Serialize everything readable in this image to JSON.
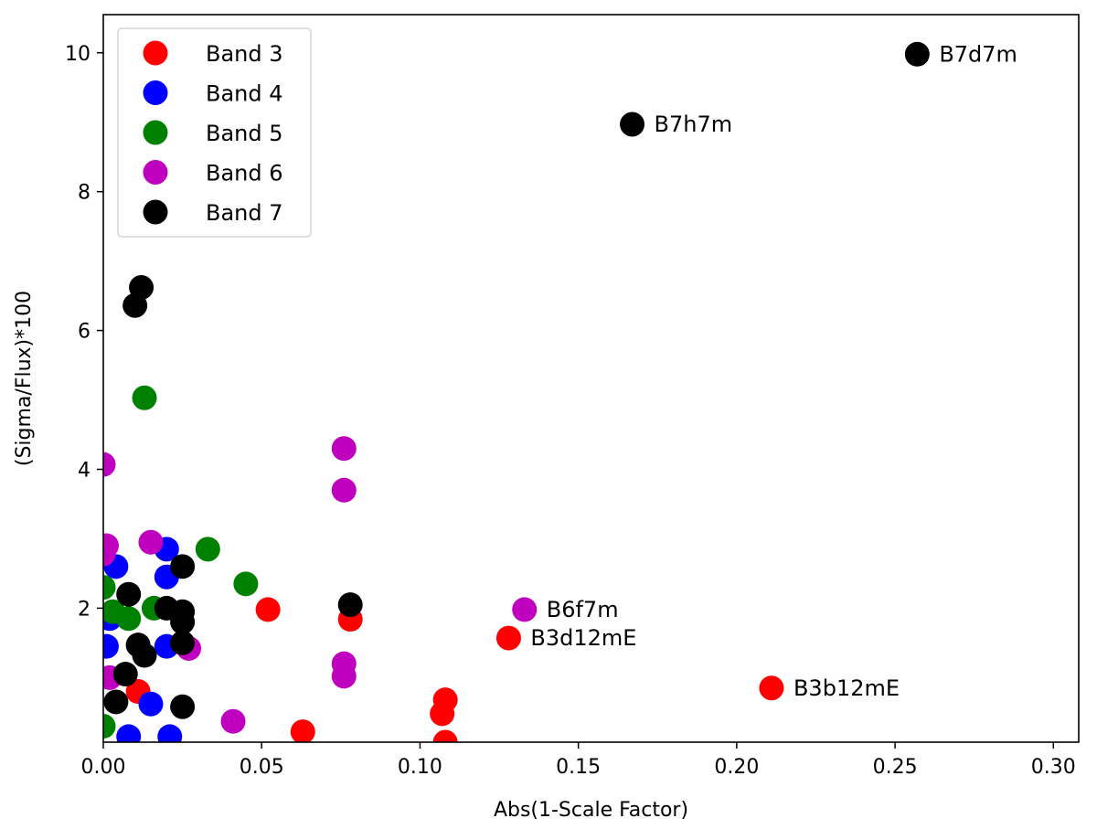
{
  "chart_data": {
    "type": "scatter",
    "title": "",
    "xlabel": "Abs(1-Scale Factor)",
    "ylabel": "(Sigma/Flux)*100",
    "xlim": [
      0.0,
      0.308
    ],
    "ylim": [
      0.07,
      10.55
    ],
    "xticks": [
      0.0,
      0.05,
      0.1,
      0.15,
      0.2,
      0.25,
      0.3
    ],
    "xtick_labels": [
      "0.00",
      "0.05",
      "0.10",
      "0.15",
      "0.20",
      "0.25",
      "0.30"
    ],
    "yticks": [
      2,
      4,
      6,
      8,
      10
    ],
    "ytick_labels": [
      "2",
      "4",
      "6",
      "8",
      "10"
    ],
    "grid": false,
    "legend_position": "top-left",
    "series": [
      {
        "name": "Band 3",
        "color": "#ff0000",
        "points": [
          [
            0.011,
            0.8
          ],
          [
            0.052,
            1.98
          ],
          [
            0.063,
            0.22
          ],
          [
            0.078,
            1.84
          ],
          [
            0.107,
            0.48
          ],
          [
            0.108,
            0.68
          ],
          [
            0.108,
            0.07
          ],
          [
            0.128,
            1.57
          ],
          [
            0.211,
            0.85
          ]
        ]
      },
      {
        "name": "Band 4",
        "color": "#0000ff",
        "points": [
          [
            0.004,
            2.6
          ],
          [
            0.002,
            1.85
          ],
          [
            0.001,
            1.45
          ],
          [
            0.008,
            0.15
          ],
          [
            0.015,
            0.62
          ],
          [
            0.02,
            2.85
          ],
          [
            0.02,
            2.45
          ],
          [
            0.02,
            1.45
          ],
          [
            0.021,
            0.15
          ]
        ]
      },
      {
        "name": "Band 5",
        "color": "#008000",
        "points": [
          [
            0.0,
            2.3
          ],
          [
            0.0,
            0.3
          ],
          [
            0.003,
            1.95
          ],
          [
            0.008,
            1.85
          ],
          [
            0.013,
            5.03
          ],
          [
            0.016,
            2.0
          ],
          [
            0.033,
            2.85
          ],
          [
            0.045,
            2.35
          ]
        ]
      },
      {
        "name": "Band 6",
        "color": "#bf00bf",
        "points": [
          [
            0.0,
            4.07
          ],
          [
            0.001,
            2.9
          ],
          [
            0.0,
            2.78
          ],
          [
            0.002,
            1.0
          ],
          [
            0.015,
            2.95
          ],
          [
            0.027,
            1.42
          ],
          [
            0.041,
            0.37
          ],
          [
            0.076,
            4.3
          ],
          [
            0.076,
            3.7
          ],
          [
            0.076,
            1.2
          ],
          [
            0.076,
            1.02
          ],
          [
            0.133,
            1.98
          ]
        ]
      },
      {
        "name": "Band 7",
        "color": "#000000",
        "points": [
          [
            0.01,
            6.36
          ],
          [
            0.012,
            6.62
          ],
          [
            0.008,
            2.2
          ],
          [
            0.004,
            0.65
          ],
          [
            0.007,
            1.05
          ],
          [
            0.011,
            1.47
          ],
          [
            0.013,
            1.32
          ],
          [
            0.02,
            2.0
          ],
          [
            0.025,
            2.6
          ],
          [
            0.025,
            1.95
          ],
          [
            0.025,
            1.8
          ],
          [
            0.025,
            1.5
          ],
          [
            0.025,
            0.58
          ],
          [
            0.078,
            2.05
          ],
          [
            0.167,
            8.97
          ],
          [
            0.257,
            9.98
          ]
        ]
      }
    ],
    "annotations": [
      {
        "text": "B7d7m",
        "x": 0.257,
        "y": 9.98
      },
      {
        "text": "B7h7m",
        "x": 0.167,
        "y": 8.97
      },
      {
        "text": "B6f7m",
        "x": 0.133,
        "y": 1.98
      },
      {
        "text": "B3d12mE",
        "x": 0.128,
        "y": 1.57
      },
      {
        "text": "B3b12mE",
        "x": 0.211,
        "y": 0.85
      }
    ]
  }
}
